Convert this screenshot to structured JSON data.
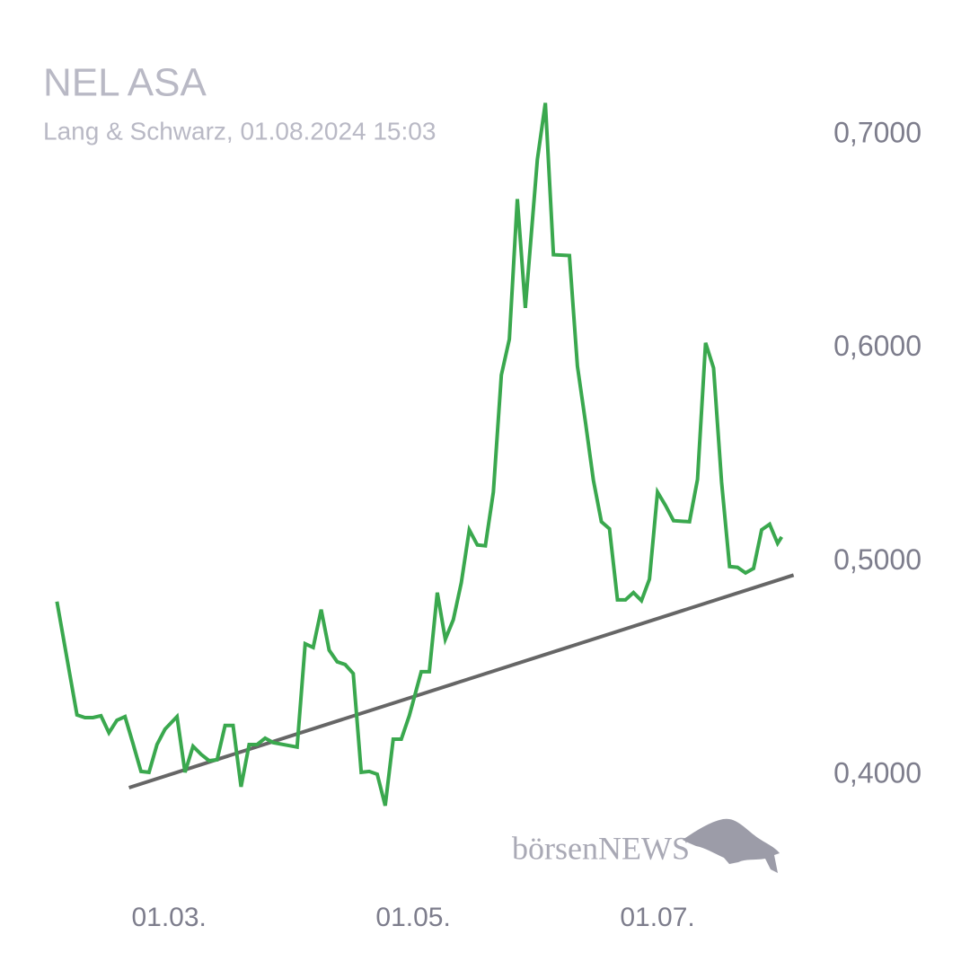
{
  "chart_data": {
    "type": "line",
    "title": "NEL ASA",
    "subtitle": "Lang & Schwarz, 01.08.2024 15:03",
    "x": [
      "02.02.",
      "07.02.",
      "09.02.",
      "11.02.",
      "13.02.",
      "15.02.",
      "17.02.",
      "19.02.",
      "21.02.",
      "23.02.",
      "25.02.",
      "27.02.",
      "29.02.",
      "03.03.",
      "05.03.",
      "07.03.",
      "09.03.",
      "11.03.",
      "13.03.",
      "15.03.",
      "17.03.",
      "19.03.",
      "21.03.",
      "23.03.",
      "25.03.",
      "27.03.",
      "02.04.",
      "04.04.",
      "06.04.",
      "08.04.",
      "10.04.",
      "12.04.",
      "14.04.",
      "16.04.",
      "18.04.",
      "20.04.",
      "22.04.",
      "24.04.",
      "26.04.",
      "28.04.",
      "30.04.",
      "03.05.",
      "05.05.",
      "07.05.",
      "09.05.",
      "11.05.",
      "13.05.",
      "15.05.",
      "17.05.",
      "19.05.",
      "21.05.",
      "23.05.",
      "25.05.",
      "27.05.",
      "29.05.",
      "01.06.",
      "03.06.",
      "05.06.",
      "09.06.",
      "11.06.",
      "13.06.",
      "15.06.",
      "17.06.",
      "19.06.",
      "21.06.",
      "23.06.",
      "25.06.",
      "27.06.",
      "29.06.",
      "01.07.",
      "03.07.",
      "05.07.",
      "09.07.",
      "11.07.",
      "13.07.",
      "15.07.",
      "17.07.",
      "19.07.",
      "21.07.",
      "23.07.",
      "25.07.",
      "27.07.",
      "29.07.",
      "31.07.",
      "01.08."
    ],
    "values": [
      0.4813,
      0.4282,
      0.4269,
      0.4269,
      0.4278,
      0.4198,
      0.4257,
      0.4274,
      0.4147,
      0.4017,
      0.4013,
      0.4143,
      0.4215,
      0.4274,
      0.4013,
      0.4135,
      0.4097,
      0.4067,
      0.4072,
      0.4232,
      0.4232,
      0.3945,
      0.4143,
      0.4143,
      0.4173,
      0.4152,
      0.4131,
      0.4615,
      0.4598,
      0.4775,
      0.4585,
      0.4531,
      0.4518,
      0.4476,
      0.4013,
      0.4017,
      0.4004,
      0.3857,
      0.4168,
      0.4168,
      0.4278,
      0.4484,
      0.4484,
      0.4855,
      0.4636,
      0.4728,
      0.4901,
      0.5149,
      0.5078,
      0.5074,
      0.5326,
      0.5874,
      0.6042,
      0.6699,
      0.6189,
      0.6884,
      0.7149,
      0.6438,
      0.6434,
      0.5916,
      0.5655,
      0.5381,
      0.5187,
      0.5154,
      0.4821,
      0.4821,
      0.4855,
      0.4817,
      0.4918,
      0.5326,
      0.5263,
      0.5192,
      0.5187,
      0.5385,
      0.6025,
      0.5907,
      0.5373,
      0.4977,
      0.4973,
      0.4947,
      0.4968,
      0.5149,
      0.5175,
      0.5086,
      0.5116
    ],
    "color": "#3aa84e",
    "trendline": {
      "x": [
        "20.02.",
        "04.08."
      ],
      "values": [
        0.3941,
        0.4937
      ],
      "color": "#666666"
    },
    "xlim": [
      "30.01.",
      "07.08."
    ],
    "xticks": [
      "01.03.",
      "01.05.",
      "01.07."
    ],
    "ylim": [
      0.38,
      0.72
    ],
    "yticks": [
      {
        "value": 0.4,
        "label": "0,4000"
      },
      {
        "value": 0.5,
        "label": "0,5000"
      },
      {
        "value": 0.6,
        "label": "0,6000"
      },
      {
        "value": 0.7,
        "label": "0,7000"
      }
    ],
    "grid": false
  },
  "logo": "börsenNEWS"
}
